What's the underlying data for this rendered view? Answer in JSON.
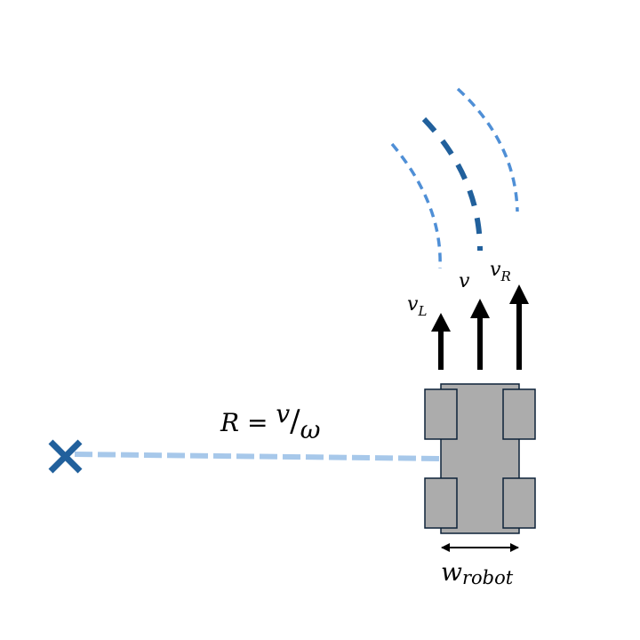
{
  "diagram": {
    "labels": {
      "v_left": "v",
      "v_left_sub": "L",
      "v_center": "v",
      "v_right": "v",
      "v_right_sub": "R",
      "radius_lhs": "R = ",
      "radius_num": "v",
      "radius_slash": "/",
      "radius_den": "ω",
      "width_main": "w",
      "width_sub": "robot"
    },
    "colors": {
      "arc_light": "#4f8fd6",
      "arc_dark": "#21609c",
      "radius_line": "#a7c8ea",
      "icc_marker": "#21609c",
      "robot_body": "#acacac",
      "robot_outline": "#0d2238",
      "arrow": "#000000"
    },
    "icons": {
      "icc_marker": "x-mark-icon"
    }
  }
}
